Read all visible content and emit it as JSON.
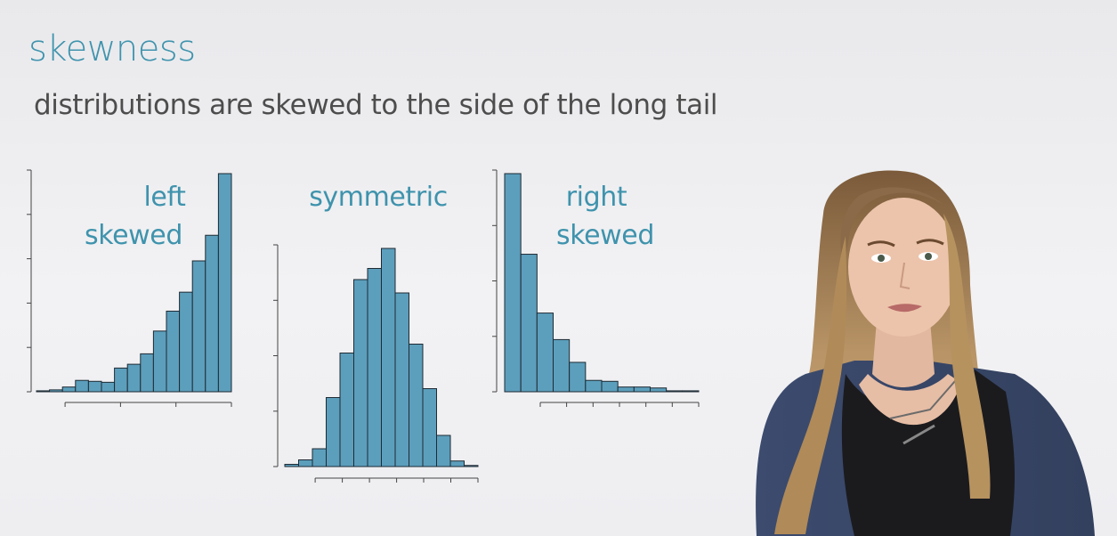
{
  "title": "skewness",
  "subtitle": "distributions are skewed to the side of the long tail",
  "colors": {
    "bar_fill": "#5c9fbc",
    "bar_stroke": "#1e2a33",
    "accent_text": "#3f93ad",
    "axis": "#444444"
  },
  "chart_data": [
    {
      "type": "bar",
      "label_lines": [
        "left",
        "skewed"
      ],
      "values": [
        1,
        2,
        5,
        12,
        11,
        10,
        25,
        29,
        40,
        64,
        85,
        105,
        138,
        165,
        230
      ],
      "ylim": [
        0,
        230
      ],
      "y_ticks": 6,
      "x_ticks": 4
    },
    {
      "type": "bar",
      "label_lines": [
        "symmetric",
        ""
      ],
      "values": [
        2,
        6,
        16,
        62,
        102,
        168,
        178,
        196,
        156,
        110,
        70,
        28,
        5,
        1
      ],
      "ylim": [
        0,
        196
      ],
      "y_ticks": 5,
      "x_ticks": 7
    },
    {
      "type": "bar",
      "label_lines": [
        "right",
        "skewed"
      ],
      "values": [
        230,
        145,
        83,
        55,
        31,
        12,
        11,
        5,
        5,
        4,
        1,
        1
      ],
      "ylim": [
        0,
        230
      ],
      "y_ticks": 5,
      "x_ticks": 7
    }
  ]
}
